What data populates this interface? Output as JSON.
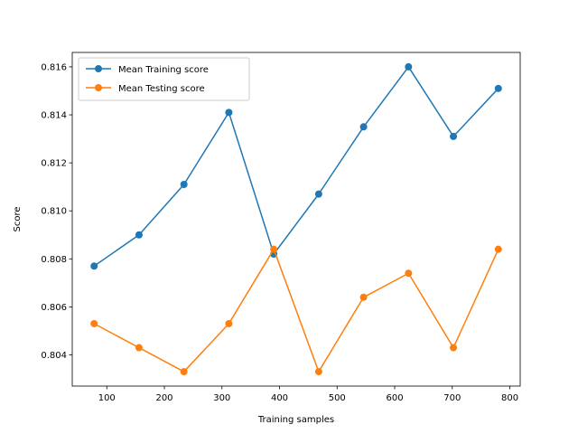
{
  "chart_data": {
    "type": "line",
    "title": "",
    "xlabel": "Training samples",
    "ylabel": "Score",
    "xlim": [
      40,
      818
    ],
    "ylim": [
      0.8027,
      0.8166
    ],
    "xticks": [
      100,
      200,
      300,
      400,
      500,
      600,
      700,
      800
    ],
    "yticks": [
      0.804,
      0.806,
      0.808,
      0.81,
      0.812,
      0.814,
      0.816
    ],
    "grid": false,
    "legend_position": "upper-left",
    "x": [
      78,
      156,
      234,
      312,
      390,
      468,
      546,
      624,
      702,
      780
    ],
    "series": [
      {
        "name": "Mean Training score",
        "color": "#1f77b4",
        "marker": "circle",
        "values": [
          0.8077,
          0.809,
          0.8111,
          0.8141,
          0.8082,
          0.8107,
          0.8135,
          0.816,
          0.8131,
          0.8151
        ]
      },
      {
        "name": "Mean Testing score",
        "color": "#ff7f0e",
        "marker": "circle",
        "values": [
          0.8053,
          0.8043,
          0.8033,
          0.8053,
          0.8084,
          0.8033,
          0.8064,
          0.8074,
          0.8043,
          0.8084
        ]
      }
    ]
  }
}
